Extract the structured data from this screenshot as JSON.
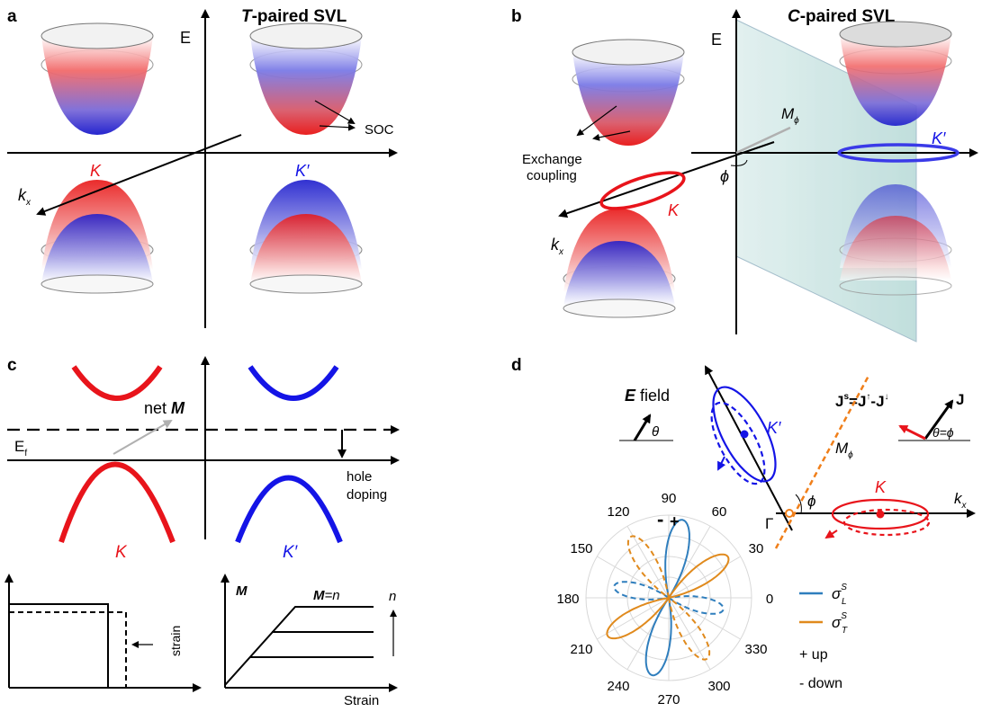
{
  "panels": {
    "a": {
      "letter": "a",
      "title_italic": "T",
      "title_rest": "-paired SVL",
      "axis_e": "E",
      "axis_kx": "k",
      "axis_kx_sub": "x",
      "valley_k": "K",
      "valley_kp": "K′",
      "soc_label": "SOC"
    },
    "b": {
      "letter": "b",
      "title_italic": "C",
      "title_rest": "-paired SVL",
      "axis_e": "E",
      "axis_kx": "k",
      "axis_kx_sub": "x",
      "valley_k": "K",
      "valley_kp": "K′",
      "m_label": "M",
      "m_sub": "ϕ",
      "phi_label": "ϕ",
      "exchange_line1": "Exchange",
      "exchange_line2": "coupling"
    },
    "c": {
      "letter": "c",
      "net_m_prefix": "net ",
      "net_m_bold": "M",
      "ef_label": "E",
      "ef_sub": "f",
      "hole_line1": "hole",
      "hole_line2": "doping",
      "valley_k": "K",
      "valley_kp": "K′",
      "strain_label": "strain",
      "m_axis": "M",
      "m_eq_n": "M",
      "m_eq_rest": "=n",
      "n_label": "n",
      "strain_axis": "Strain"
    },
    "d": {
      "letter": "d",
      "e_field_bold": "E",
      "e_field_rest": " field",
      "theta": "θ",
      "js_formula": "J",
      "js_sup": "s",
      "js_eq": "=J",
      "js_up": "↑",
      "js_minus": "-J",
      "js_down": "↓",
      "j_label": "J",
      "theta_phi": "θ=ϕ",
      "valley_k": "K",
      "valley_kp": "K′",
      "m_label": "M",
      "m_sub": "ϕ",
      "phi_label": "ϕ",
      "gamma": "Γ",
      "kx": "k",
      "kx_sub": "x",
      "angles": [
        "0",
        "30",
        "60",
        "90",
        "120",
        "150",
        "180",
        "210",
        "240",
        "270",
        "300",
        "330"
      ],
      "plus_marker": "+",
      "minus_marker": "-",
      "legend_l": "σ",
      "legend_l_sup": "S",
      "legend_l_sub": "L",
      "legend_t": "σ",
      "legend_t_sup": "S",
      "legend_t_sub": "T",
      "legend_up": "+ up",
      "legend_down": "- down"
    }
  },
  "colors": {
    "red": "#e8141b",
    "blue": "#1414e6",
    "orange": "#f07f1a",
    "teal_plane": "#b8dcda",
    "sigma_l": "#2f7ebd",
    "sigma_t": "#e08a1d",
    "gray_arrow": "#b0b0b0"
  },
  "icons": {
    "dirac_cone": "gradient-cone-icon",
    "e_field_arrow": "arrow-icon",
    "current_arrow": "arrow-icon"
  }
}
